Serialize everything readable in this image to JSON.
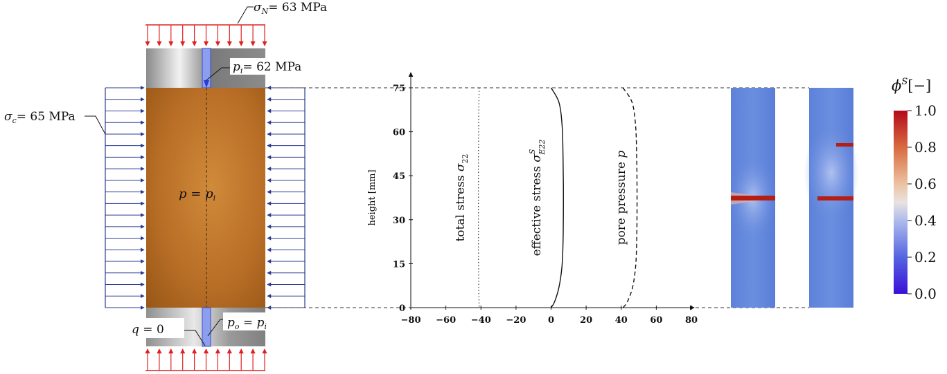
{
  "specimen": {
    "sigma_n_label": "σ",
    "sigma_n_sub": "N",
    "sigma_n_value": "= 63 MPa",
    "p_i_label": "p",
    "p_i_sub": "i",
    "p_i_value": "= 62 MPa",
    "sigma_c_label": "σ",
    "sigma_c_sub": "c",
    "sigma_c_value": "= 65 MPa",
    "p_eq_a": "p",
    "p_eq_mid": " = ",
    "p_eq_b": "p",
    "p_eq_sub": "i",
    "q_label": "q",
    "q_value": " = 0",
    "p_o_label": "p",
    "p_o_sub": "o",
    "p_o_mid": " = ",
    "p_o_rhs": "p",
    "p_o_rhs_sub": "i"
  },
  "chart_data": {
    "type": "line",
    "title": "",
    "xlabel": "",
    "ylabel": "height [mm]",
    "xlim": [
      -80,
      80
    ],
    "ylim": [
      0,
      75
    ],
    "x_ticks": [
      "−80",
      "−60",
      "−40",
      "−20",
      "0",
      "20",
      "40",
      "60",
      "80"
    ],
    "y_ticks": [
      "0",
      "15",
      "30",
      "45",
      "60",
      "75"
    ],
    "series": [
      {
        "name": "total stress σ22",
        "label_text": "total stress ",
        "label_sym": "σ",
        "label_sub": "22",
        "style": "dotted",
        "x": [
          -41,
          -41.2,
          -41.3,
          -41.4,
          -41.4,
          -41.4,
          -41.4,
          -41.3,
          -41.2,
          -41
        ],
        "y": [
          75,
          70,
          60,
          50,
          40,
          30,
          20,
          10,
          4,
          0
        ]
      },
      {
        "name": "effective stress σE22S",
        "label_text": "effective stress ",
        "label_sym": "σ",
        "label_sub": "E22",
        "label_sup": "S",
        "style": "solid",
        "x": [
          0,
          4.5,
          6.3,
          6.8,
          7.0,
          7.0,
          6.8,
          6.2,
          4.5,
          2.0,
          0
        ],
        "y": [
          75,
          70,
          62,
          52,
          42,
          32,
          22,
          14,
          7,
          2,
          0
        ]
      },
      {
        "name": "pore pressure p",
        "label_text": "pore pressure ",
        "label_sym": "p",
        "style": "dashed",
        "x": [
          41,
          46.2,
          48.2,
          48.8,
          49.0,
          49.0,
          48.8,
          48.2,
          46.5,
          43.5,
          41
        ],
        "y": [
          75,
          70,
          62,
          52,
          42,
          32,
          22,
          14,
          7,
          2,
          0
        ]
      }
    ]
  },
  "colorbar": {
    "label_sym": "ϕ",
    "label_sup": "S",
    "label_unit": "[−]",
    "ticks": [
      "1.0",
      "0.8",
      "0.6",
      "0.4",
      "0.2",
      "0.0"
    ]
  },
  "colors": {
    "rock": "#c07428",
    "arrow_blue": "#2a3b8f",
    "arrow_red": "#e02020",
    "fluid_blue": "#8c9ef0",
    "field_blue": "#5a7ed8",
    "crack_red": "#b41e14"
  }
}
